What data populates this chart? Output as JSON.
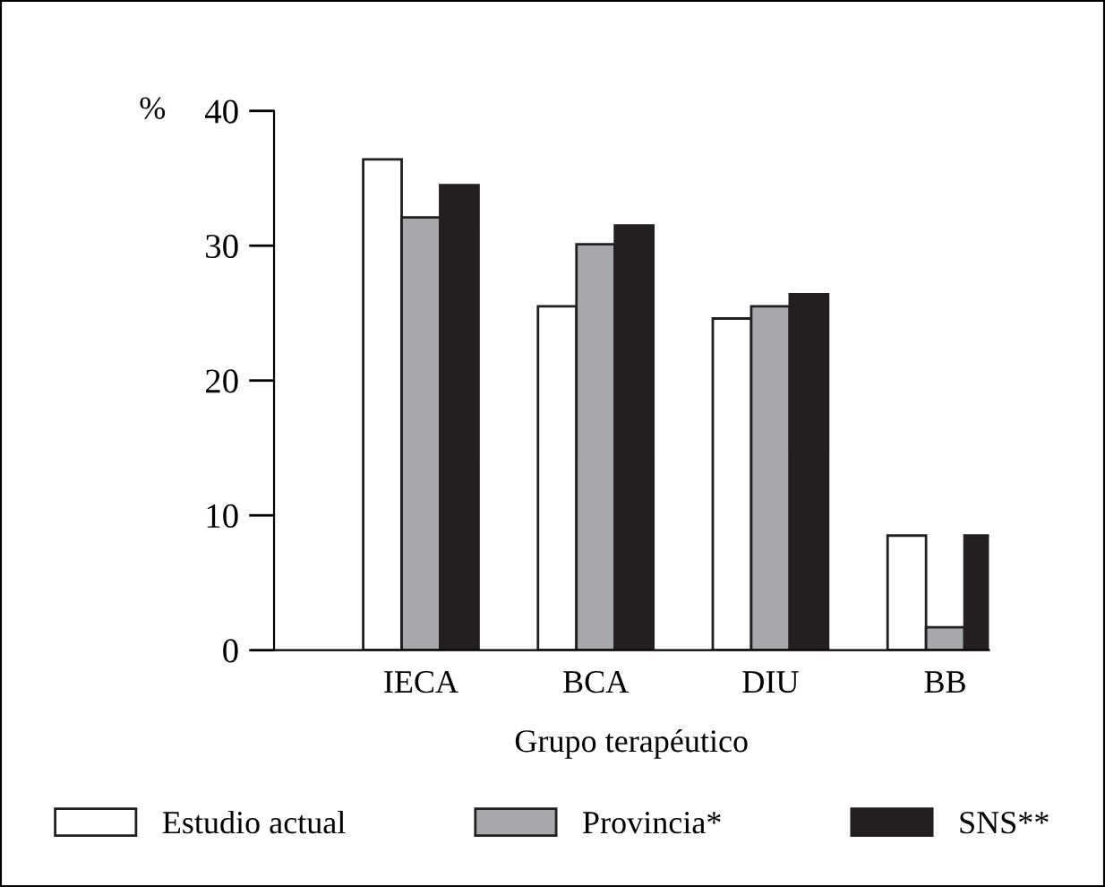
{
  "chart_data": {
    "type": "bar",
    "xlabel": "Grupo terapéutico",
    "ylabel": "%",
    "categories": [
      "IECA",
      "BCA",
      "DIU",
      "BB"
    ],
    "series": [
      {
        "name": "Estudio actual",
        "color": "#ffffff",
        "values": [
          36.4,
          25.5,
          24.6,
          8.5
        ]
      },
      {
        "name": "Provincia*",
        "color": "#a7a8ab",
        "values": [
          32.1,
          30.1,
          25.5,
          1.7
        ]
      },
      {
        "name": "SNS**",
        "color": "#231f20",
        "values": [
          34.5,
          31.5,
          26.4,
          8.5
        ]
      }
    ],
    "ylim": [
      0,
      40
    ],
    "yticks": [
      0,
      10,
      20,
      30,
      40
    ],
    "grid": false,
    "legend": "bottom"
  }
}
